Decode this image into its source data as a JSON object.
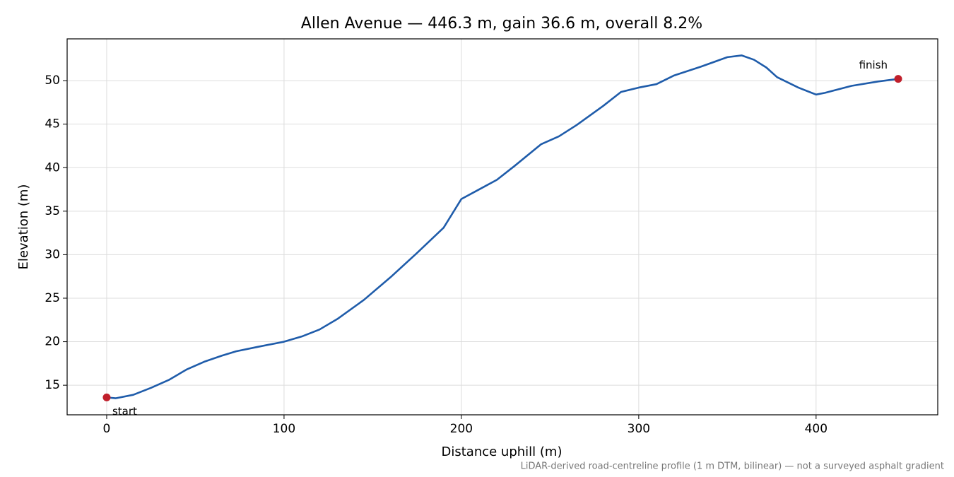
{
  "chart_data": {
    "type": "line",
    "title": "Allen Avenue — 446.3 m, gain 36.6 m, overall 8.2%",
    "x_label": "Distance uphill (m)",
    "y_label": "Elevation (m)",
    "footnote": "LiDAR-derived road-centreline profile (1 m DTM, bilinear) — not a surveyed asphalt gradient",
    "x": [
      0,
      5,
      15,
      25,
      35,
      45,
      55,
      65,
      73,
      85,
      100,
      110,
      120,
      130,
      145,
      160,
      175,
      190,
      200,
      210,
      220,
      230,
      245,
      255,
      265,
      280,
      290,
      300,
      310,
      320,
      335,
      350,
      358,
      365,
      372,
      378,
      390,
      400,
      405,
      420,
      435,
      446.3
    ],
    "series": [
      {
        "name": "Elevation",
        "color": "#1f5caa",
        "values": [
          13.6,
          13.5,
          13.9,
          14.7,
          15.6,
          16.8,
          17.7,
          18.4,
          18.9,
          19.4,
          20.0,
          20.6,
          21.4,
          22.6,
          24.8,
          27.4,
          30.2,
          33.1,
          36.4,
          37.5,
          38.6,
          40.2,
          42.7,
          43.6,
          44.9,
          47.1,
          48.7,
          49.2,
          49.6,
          50.6,
          51.6,
          52.7,
          52.9,
          52.4,
          51.5,
          50.4,
          49.2,
          48.4,
          48.6,
          49.4,
          49.9,
          50.2
        ]
      }
    ],
    "endpoints": [
      {
        "label": "start",
        "x": 0,
        "y": 13.6
      },
      {
        "label": "finish",
        "x": 446.3,
        "y": 50.2
      }
    ],
    "endpoint_color": "#c01f2b",
    "xlim": [
      -22.3,
      468.6
    ],
    "ylim": [
      11.6,
      54.8
    ],
    "xticks": [
      0,
      100,
      200,
      300,
      400
    ],
    "yticks": [
      15,
      20,
      25,
      30,
      35,
      40,
      45,
      50
    ],
    "grid": true
  }
}
